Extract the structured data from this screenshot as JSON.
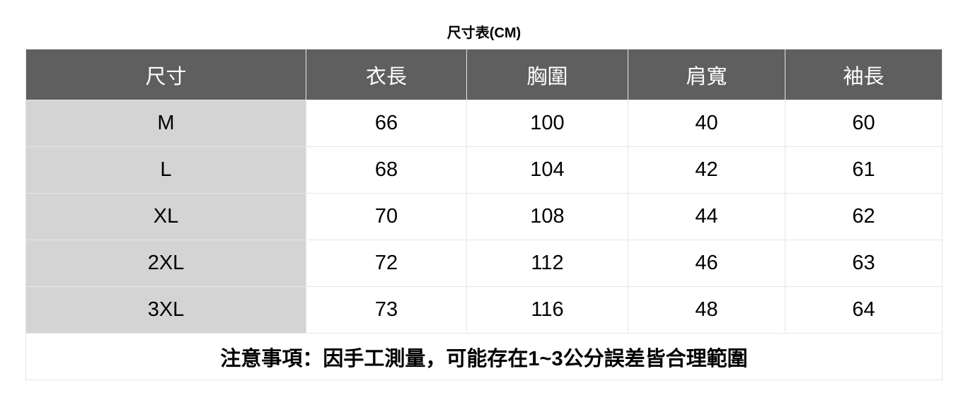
{
  "title": "尺寸表(CM)",
  "headers": [
    "尺寸",
    "衣長",
    "胸圍",
    "肩寬",
    "袖長"
  ],
  "rows": [
    [
      "M",
      "66",
      "100",
      "40",
      "60"
    ],
    [
      "L",
      "68",
      "104",
      "42",
      "61"
    ],
    [
      "XL",
      "70",
      "108",
      "44",
      "62"
    ],
    [
      "2XL",
      "72",
      "112",
      "46",
      "63"
    ],
    [
      "3XL",
      "73",
      "116",
      "48",
      "64"
    ]
  ],
  "note": "注意事項：因手工測量，可能存在1~3公分誤差皆合理範圍",
  "colors": {
    "header_bg": "#5f5f5f",
    "size_column_bg": "#d4d4d4",
    "border": "#e6e6e6"
  }
}
